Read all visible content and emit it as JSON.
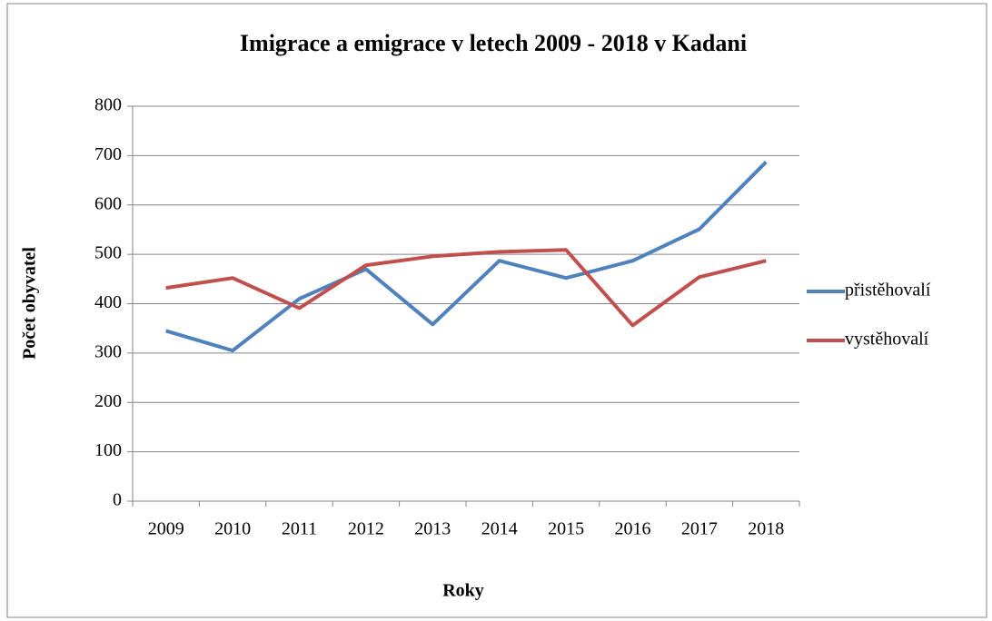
{
  "chart_data": {
    "type": "line",
    "title": "Imigrace a emigrace v letech 2009 - 2018 v Kadani",
    "x_label": "Roky",
    "y_label": "Počet obyvatel",
    "categories": [
      "2009",
      "2010",
      "2011",
      "2012",
      "2013",
      "2014",
      "2015",
      "2016",
      "2017",
      "2018"
    ],
    "series": [
      {
        "name": "přistěhovalí",
        "color": "#4f81bd",
        "values": [
          345,
          305,
          410,
          470,
          358,
          487,
          452,
          487,
          551,
          687
        ]
      },
      {
        "name": "vystěhovalí",
        "color": "#c0504d",
        "values": [
          432,
          452,
          391,
          478,
          496,
          505,
          509,
          356,
          454,
          487
        ]
      }
    ],
    "ylim": [
      0,
      800
    ],
    "yticks": [
      0,
      100,
      200,
      300,
      400,
      500,
      600,
      700,
      800
    ],
    "grid": true,
    "legend": "right"
  }
}
